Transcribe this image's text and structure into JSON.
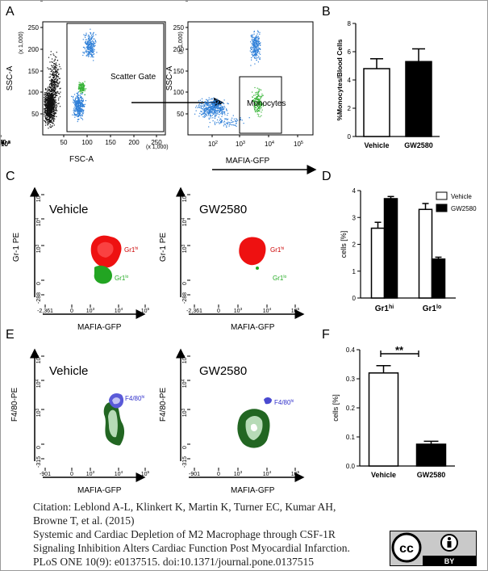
{
  "panels": {
    "A": {
      "letter": "A",
      "plot1": {
        "ylabel": "SSC-A",
        "ymult": "(x 1,000)",
        "xlabel": "FSC-A",
        "xmult": "(x 1,000)",
        "yticks": [
          "250",
          "200",
          "150",
          "100",
          "50"
        ],
        "xticks": [
          "50",
          "100",
          "150",
          "200",
          "250"
        ],
        "gate_label": "Scatter Gate"
      },
      "plot2": {
        "ylabel": "SSC-A",
        "ymult": "(x 1,000)",
        "xlabel": "MAFIA-GFP",
        "yticks": [
          "250",
          "200",
          "150",
          "100",
          "50"
        ],
        "xticks": [
          {
            "b": "10",
            "e": "2"
          },
          {
            "b": "10",
            "e": "3"
          },
          {
            "b": "10",
            "e": "4"
          },
          {
            "b": "10",
            "e": "5"
          }
        ],
        "gate_label": "Monocytes"
      }
    },
    "C": {
      "letter": "C",
      "ylabel": "Gr-1 PE",
      "xlabel": "MAFIA-GFP",
      "left_label": "Vehicle",
      "right_label": "GW2580",
      "yticks": [
        {
          "b": "10",
          "e": "5"
        },
        {
          "b": "10",
          "e": "4"
        },
        {
          "b": "10",
          "e": "3"
        },
        {
          "b": "0",
          "e": ""
        },
        {
          "b": "-288",
          "e": ""
        }
      ],
      "xticks": [
        {
          "b": "-2,361",
          "e": ""
        },
        {
          "b": "0",
          "e": ""
        },
        {
          "b": "10",
          "e": "3"
        },
        {
          "b": "10",
          "e": "4"
        },
        {
          "b": "10",
          "e": "5"
        }
      ],
      "hi_label": {
        "b": "Gr1",
        "e": "hi"
      },
      "lo_label": {
        "b": "Gr1",
        "e": "lo"
      }
    },
    "E": {
      "letter": "E",
      "ylabel": "F4/80-PE",
      "xlabel": "MAFIA-GFP",
      "left_label": "Vehicle",
      "right_label": "GW2580",
      "yticks": [
        {
          "b": "10",
          "e": "5"
        },
        {
          "b": "10",
          "e": "4"
        },
        {
          "b": "10",
          "e": "3"
        },
        {
          "b": "0",
          "e": ""
        },
        {
          "b": "-315",
          "e": ""
        }
      ],
      "xticks": [
        {
          "b": "-901",
          "e": ""
        },
        {
          "b": "0",
          "e": ""
        },
        {
          "b": "10",
          "e": "3"
        },
        {
          "b": "10",
          "e": "4"
        },
        {
          "b": "10",
          "e": "5"
        }
      ],
      "hi_label": {
        "b": "F4/80",
        "e": "hi"
      }
    }
  },
  "chart_data": [
    {
      "panel": "B",
      "type": "bar",
      "categories": [
        "Vehicle",
        "GW2580"
      ],
      "values": [
        4.8,
        5.3
      ],
      "errors": [
        0.7,
        0.9
      ],
      "ylabel": "%Monocytes/Blood Cells",
      "ylim": [
        0,
        8
      ],
      "yticks": [
        0,
        2,
        4,
        6,
        8
      ],
      "fills": [
        "#ffffff",
        "#000000"
      ]
    },
    {
      "panel": "D",
      "type": "bar",
      "categories": [
        "Gr1hi",
        "Gr1lo"
      ],
      "category_labels": [
        {
          "b": "Gr1",
          "e": "hi"
        },
        {
          "b": "Gr1",
          "e": "lo"
        }
      ],
      "series": [
        {
          "name": "Vehicle",
          "values": [
            2.6,
            3.3
          ],
          "errors": [
            0.22,
            0.22
          ],
          "fill": "#ffffff"
        },
        {
          "name": "GW2580",
          "values": [
            3.7,
            1.45
          ],
          "errors": [
            0.08,
            0.07
          ],
          "fill": "#000000"
        }
      ],
      "ylabel": "cells [%]",
      "ylim": [
        0,
        4
      ],
      "yticks": [
        0,
        1,
        2,
        3,
        4
      ],
      "legend": "top-right"
    },
    {
      "panel": "F",
      "type": "bar",
      "categories": [
        "Vehicle",
        "GW2580"
      ],
      "values": [
        0.32,
        0.075
      ],
      "errors": [
        0.025,
        0.01
      ],
      "ylabel": "cells [%]",
      "ylim": [
        0,
        0.4
      ],
      "yticks": [
        "0.0",
        "0.1",
        "0.2",
        "0.3",
        "0.4"
      ],
      "annotation": "**",
      "fills": [
        "#ffffff",
        "#000000"
      ]
    }
  ],
  "panel_letters": {
    "B": "B",
    "D": "D",
    "F": "F"
  },
  "citation": {
    "line1": "Citation: Leblond A-L, Klinkert K, Martin K, Turner EC, Kumar AH,",
    "line2": "Browne T, et al. (2015)",
    "line3": "Systemic and Cardiac Depletion of M2 Macrophage through CSF-1R",
    "line4": "Signaling Inhibition Alters Cardiac Function Post Myocardial Infarction.",
    "line5": "PLoS ONE 10(9): e0137515. doi:10.1371/journal.pone.0137515"
  },
  "license": {
    "cc": "cc",
    "by": "BY"
  }
}
